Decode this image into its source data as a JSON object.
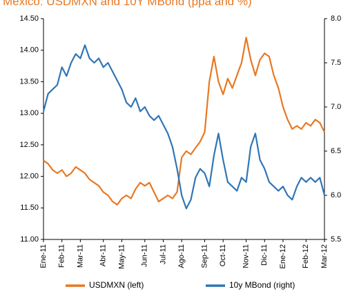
{
  "chart_data": {
    "type": "line",
    "title": "Mexico: USDMXN and 10Y MBond (ppa and %)",
    "categories": [
      "Ene-11",
      null,
      null,
      null,
      "Feb-11",
      null,
      null,
      null,
      "Mar-11",
      null,
      null,
      null,
      null,
      "Abr-11",
      null,
      null,
      null,
      "May-11",
      null,
      null,
      null,
      null,
      "Jun-11",
      null,
      null,
      null,
      "Jul-11",
      null,
      null,
      null,
      "Ago-11",
      null,
      null,
      null,
      null,
      "Sep-11",
      null,
      null,
      null,
      "Oct-11",
      null,
      null,
      null,
      null,
      "Nov-11",
      null,
      null,
      null,
      "Dic-11",
      null,
      null,
      null,
      "Ene-12",
      null,
      null,
      null,
      null,
      "Feb-12",
      null,
      null,
      null,
      "Mar-12"
    ],
    "series": [
      {
        "name": "USDMXN (left)",
        "color": "#e87722",
        "axis": "y",
        "values": [
          12.25,
          12.2,
          12.1,
          12.05,
          12.1,
          12.0,
          12.05,
          12.15,
          12.1,
          12.05,
          11.95,
          11.9,
          11.85,
          11.75,
          11.7,
          11.6,
          11.55,
          11.65,
          11.7,
          11.65,
          11.8,
          11.9,
          11.85,
          11.9,
          11.75,
          11.6,
          11.65,
          11.7,
          11.65,
          11.75,
          12.3,
          12.4,
          12.35,
          12.45,
          12.55,
          12.7,
          13.5,
          13.9,
          13.5,
          13.3,
          13.55,
          13.4,
          13.6,
          13.8,
          14.2,
          13.85,
          13.6,
          13.85,
          13.95,
          13.9,
          13.6,
          13.4,
          13.1,
          12.9,
          12.75,
          12.8,
          12.75,
          12.85,
          12.8,
          12.9,
          12.85,
          12.7
        ]
      },
      {
        "name": "10y MBond (right)",
        "color": "#2e75b6",
        "axis": "y2",
        "values": [
          6.95,
          7.15,
          7.2,
          7.25,
          7.45,
          7.35,
          7.5,
          7.6,
          7.55,
          7.7,
          7.55,
          7.5,
          7.55,
          7.45,
          7.5,
          7.4,
          7.3,
          7.2,
          7.05,
          7.0,
          7.1,
          6.95,
          7.0,
          6.9,
          6.85,
          6.9,
          6.8,
          6.7,
          6.55,
          6.3,
          6.0,
          5.85,
          5.95,
          6.2,
          6.3,
          6.25,
          6.1,
          6.45,
          6.7,
          6.4,
          6.15,
          6.1,
          6.05,
          6.2,
          6.15,
          6.55,
          6.7,
          6.4,
          6.3,
          6.15,
          6.1,
          6.05,
          6.1,
          6.0,
          5.95,
          6.1,
          6.2,
          6.15,
          6.2,
          6.15,
          6.2,
          6.0
        ]
      }
    ],
    "ylim": [
      11,
      14.5
    ],
    "yticks": [
      {
        "value": 11,
        "label": "11.00"
      },
      {
        "value": 11.5,
        "label": "11.50"
      },
      {
        "value": 12,
        "label": "12.00"
      },
      {
        "value": 12.5,
        "label": "12.50"
      },
      {
        "value": 13,
        "label": "13.00"
      },
      {
        "value": 13.5,
        "label": "13.50"
      },
      {
        "value": 14,
        "label": "14.00"
      },
      {
        "value": 14.5,
        "label": "14.50"
      }
    ],
    "y2lim": [
      5.5,
      8
    ],
    "y2ticks": [
      5.5,
      {
        "value": 6,
        "label": "6.0"
      },
      6.5,
      {
        "value": 7,
        "label": "7.0"
      },
      7.5,
      {
        "value": 8,
        "label": "8.0"
      }
    ],
    "legend": "bottom"
  }
}
